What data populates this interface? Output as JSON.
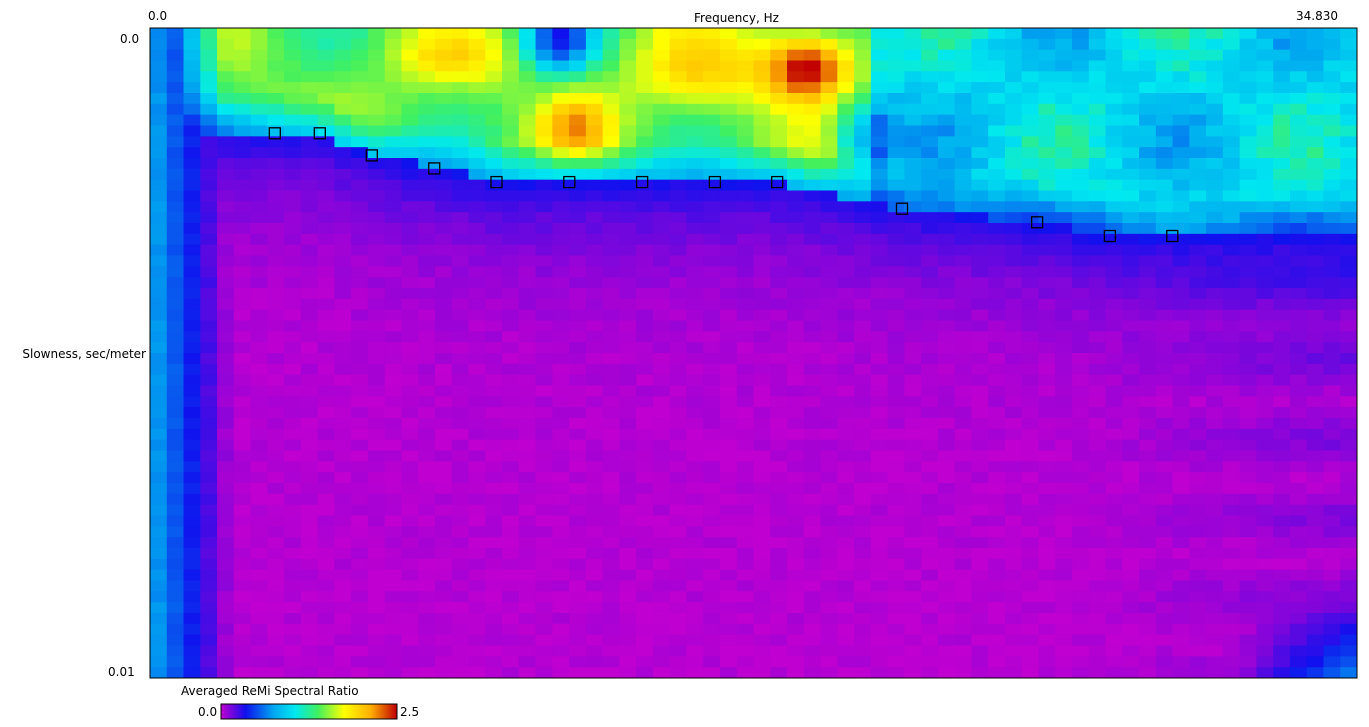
{
  "chart_data": {
    "type": "heatmap",
    "xlabel": "Frequency, Hz",
    "ylabel": "Slowness, sec/meter",
    "x_range": [
      0.0,
      34.83
    ],
    "y_range": [
      0.0,
      0.01
    ],
    "x_tick_labels": [
      "0.0",
      "34.830"
    ],
    "y_tick_labels": [
      "0.0",
      "0.01"
    ],
    "y_axis": "inverted",
    "colorbar": {
      "title": "Averaged ReMi Spectral Ratio",
      "min_label": "0.0",
      "max_label": "2.5",
      "range": [
        0.0,
        2.5
      ],
      "colormap": [
        "#c000d0",
        "#1010ee",
        "#00a8f0",
        "#00e8f0",
        "#40f060",
        "#ffff00",
        "#ffb000",
        "#c00000"
      ]
    },
    "picks": [
      {
        "x": 3.6,
        "y": 0.00162
      },
      {
        "x": 4.9,
        "y": 0.00162
      },
      {
        "x": 6.4,
        "y": 0.00196
      },
      {
        "x": 8.2,
        "y": 0.00216
      },
      {
        "x": 10.0,
        "y": 0.00237
      },
      {
        "x": 12.1,
        "y": 0.00237
      },
      {
        "x": 14.2,
        "y": 0.00237
      },
      {
        "x": 16.3,
        "y": 0.00237
      },
      {
        "x": 18.1,
        "y": 0.00237
      },
      {
        "x": 21.7,
        "y": 0.00278
      },
      {
        "x": 25.6,
        "y": 0.00299
      },
      {
        "x": 27.7,
        "y": 0.0032
      },
      {
        "x": 29.5,
        "y": 0.0032
      }
    ]
  }
}
